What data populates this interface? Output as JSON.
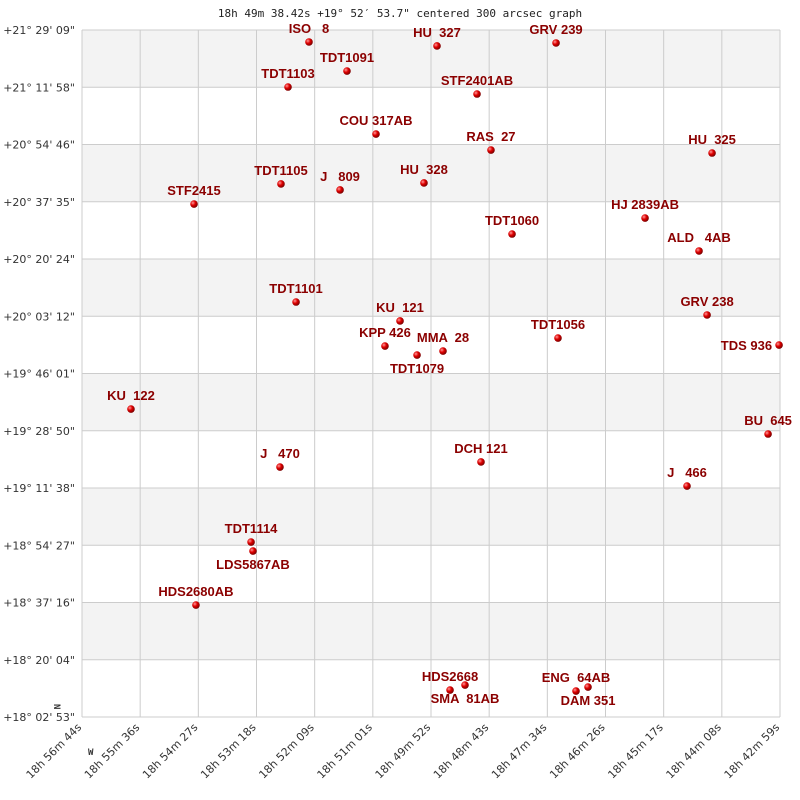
{
  "chart_data": {
    "type": "scatter",
    "title": "18h 49m 38.42s +19° 52′ 53.7\" centered 300 arcsec graph",
    "xlabel": "",
    "ylabel": "",
    "x_axis": "right ascension",
    "y_axis": "declination",
    "xlim": [
      "18h 56m 44s",
      "18h 42m 59s"
    ],
    "ylim": [
      "+18° 02' 53\"",
      "+21° 29' 09\""
    ],
    "x_ticks": [
      "18h 56m 44s",
      "18h 55m 36s",
      "18h 54m 27s",
      "18h 53m 18s",
      "18h 52m 09s",
      "18h 51m 01s",
      "18h 49m 52s",
      "18h 48m 43s",
      "18h 47m 34s",
      "18h 46m 26s",
      "18h 45m 17s",
      "18h 44m 08s",
      "18h 42m 59s"
    ],
    "y_ticks": [
      "+21° 29' 09\"",
      "+21° 11' 58\"",
      "+20° 54' 46\"",
      "+20° 37' 35\"",
      "+20° 20' 24\"",
      "+20° 03' 12\"",
      "+19° 46' 01\"",
      "+19° 28' 50\"",
      "+19° 11' 38\"",
      "+18° 54' 27\"",
      "+18° 37' 16\"",
      "+18° 20' 04\"",
      "+18° 02' 53\""
    ],
    "direction_labels": {
      "north": "N",
      "west": "W"
    },
    "grid": true,
    "banded_background": true,
    "colors": {
      "label": "#8b0000",
      "point": "#e00000",
      "band": "#f3f3f3",
      "grid": "#cccccc"
    },
    "points": [
      {
        "name": "ISO   8",
        "ra": "18h 52m 15.7s",
        "dec": "+21° 25' 33\""
      },
      {
        "name": "HU  327",
        "ra": "18h 49m 44.4s",
        "dec": "+21° 24' 21\""
      },
      {
        "name": "GRV 239",
        "ra": "18h 47m 23.7s",
        "dec": "+21° 25' 15\""
      },
      {
        "name": "TDT1091",
        "ra": "18h 51m 30.8s",
        "dec": "+21° 16' 50\""
      },
      {
        "name": "TDT1103",
        "ra": "18h 52m 40.5s",
        "dec": "+21° 12' 02\""
      },
      {
        "name": "STF2401AB",
        "ra": "18h 48m 57.1s",
        "dec": "+21° 09' 56\""
      },
      {
        "name": "COU 317AB",
        "ra": "18h 50m 56.5s",
        "dec": "+20° 57' 55\""
      },
      {
        "name": "RAS  27",
        "ra": "18h 48m 40.6s",
        "dec": "+20° 53' 07\""
      },
      {
        "name": "HU  325",
        "ra": "18h 44m 19.3s",
        "dec": "+20° 52' 13\""
      },
      {
        "name": "TDT1105",
        "ra": "18h 52m 48.8s",
        "dec": "+20° 42' 55\""
      },
      {
        "name": "J   809",
        "ra": "18h 51m 39.0s",
        "dec": "+20° 41' 07\""
      },
      {
        "name": "HU  328",
        "ra": "18h 49m 59.8s",
        "dec": "+20° 43' 13\""
      },
      {
        "name": "STF2415",
        "ra": "18h 54m 31.6s",
        "dec": "+20° 36' 54\""
      },
      {
        "name": "HJ 2839AB",
        "ra": "18h 45m 38.5s",
        "dec": "+20° 32' 42\""
      },
      {
        "name": "TDT1060",
        "ra": "18h 48m 15.7s",
        "dec": "+20° 27' 54\""
      },
      {
        "name": "ALD   4AB",
        "ra": "18h 44m 34.7s",
        "dec": "+20° 22' 48\""
      },
      {
        "name": "TDT1101",
        "ra": "18h 52m 31.0s",
        "dec": "+20° 07' 29\""
      },
      {
        "name": "KU  121",
        "ra": "18h 50m 28.1s",
        "dec": "+20° 01' 47\""
      },
      {
        "name": "GRV 238",
        "ra": "18h 44m 25.2s",
        "dec": "+20° 03' 35\""
      },
      {
        "name": "KPP 426",
        "ra": "18h 50m 45.9s",
        "dec": "+19° 54' 16\""
      },
      {
        "name": "TDT1079",
        "ra": "18h 50m 08.0s",
        "dec": "+19° 51' 34\""
      },
      {
        "name": "MMA  28",
        "ra": "18h 49m 37.3s",
        "dec": "+19° 52' 46\""
      },
      {
        "name": "TDT1056",
        "ra": "18h 47m 21.4s",
        "dec": "+19° 56' 40\""
      },
      {
        "name": "TDS 936",
        "ra": "18h 43m 00.1s",
        "dec": "+19° 54' 34\""
      },
      {
        "name": "KU  122",
        "ra": "18h 55m 46.1s",
        "dec": "+19° 35' 21\""
      },
      {
        "name": "BU  645",
        "ra": "18h 43m 13.1s",
        "dec": "+19° 27' 51\""
      },
      {
        "name": "J   470",
        "ra": "18h 52m 50.0s",
        "dec": "+19° 17' 56\""
      },
      {
        "name": "DCH 121",
        "ra": "18h 48m 52.4s",
        "dec": "+19° 19' 27\""
      },
      {
        "name": "J   466",
        "ra": "18h 44m 48.9s",
        "dec": "+19° 12' 14\""
      },
      {
        "name": "TDT1114",
        "ra": "18h 53m 24.2s",
        "dec": "+18° 55' 25\""
      },
      {
        "name": "LDS5867AB",
        "ra": "18h 53m 21.9s",
        "dec": "+18° 52' 43\""
      },
      {
        "name": "HDS2680AB",
        "ra": "18h 54m 29.3s",
        "dec": "+18° 36' 30\""
      },
      {
        "name": "HDS2668",
        "ra": "18h 49m 29.0s",
        "dec": "+18° 10' 59\""
      },
      {
        "name": "SMA  81AB",
        "ra": "18h 49m 11.3s",
        "dec": "+18° 12' 29\""
      },
      {
        "name": "ENG  64AB",
        "ra": "18h 47m 00.1s",
        "dec": "+18° 10' 41\""
      },
      {
        "name": "DAM 351",
        "ra": "18h 46m 45.9s",
        "dec": "+18° 11' 53\""
      }
    ]
  }
}
